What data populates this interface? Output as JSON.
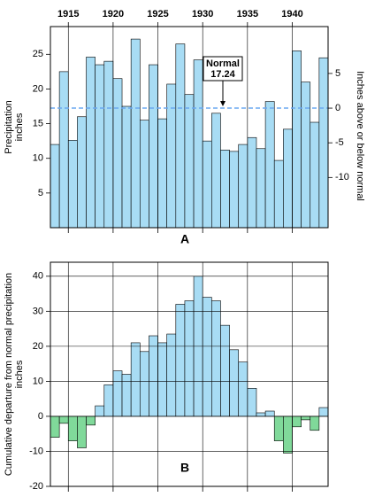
{
  "chart_data": [
    {
      "type": "bar",
      "label": "A",
      "x": [
        1913,
        1914,
        1915,
        1916,
        1917,
        1918,
        1919,
        1920,
        1921,
        1922,
        1923,
        1924,
        1925,
        1926,
        1927,
        1928,
        1929,
        1930,
        1931,
        1932,
        1933,
        1934,
        1935,
        1936,
        1937,
        1938,
        1939,
        1940,
        1941,
        1942,
        1943
      ],
      "values": [
        12,
        22.5,
        12.6,
        16,
        24.6,
        23.5,
        24,
        21.5,
        17.5,
        27.2,
        15.5,
        23.5,
        15.7,
        20.7,
        26.5,
        19.2,
        24.2,
        12.5,
        16.5,
        11.2,
        11,
        12,
        13,
        11.4,
        18.2,
        9.7,
        14.2,
        25.5,
        21,
        15.2,
        24.5
      ],
      "color": "#a8dcf4",
      "xlim": [
        1913,
        1944
      ],
      "xticks": [
        1915,
        1920,
        1925,
        1930,
        1935,
        1940
      ],
      "ylim": [
        0,
        29
      ],
      "yticks": [
        5,
        10,
        15,
        20,
        25
      ],
      "y2lim": [
        -17.24,
        11.76
      ],
      "y2ticks": [
        5,
        0,
        -5,
        -10
      ],
      "ylabel": [
        "Precipitation",
        "inches"
      ],
      "y2label": "Inches above or below normal",
      "normal": {
        "label": "Normal",
        "value": 17.24,
        "color": "#6aa8f0"
      },
      "grid": true
    },
    {
      "type": "bar",
      "label": "B",
      "x": [
        1913,
        1914,
        1915,
        1916,
        1917,
        1918,
        1919,
        1920,
        1921,
        1922,
        1923,
        1924,
        1925,
        1926,
        1927,
        1928,
        1929,
        1930,
        1931,
        1932,
        1933,
        1934,
        1935,
        1936,
        1937,
        1938,
        1939,
        1940,
        1941,
        1942,
        1943
      ],
      "values": [
        -6,
        -2,
        -7,
        -9,
        -2.5,
        3,
        9,
        13,
        12,
        21,
        18.5,
        23,
        21,
        23.5,
        32,
        33,
        40,
        34,
        33,
        26,
        19,
        15.5,
        8,
        1,
        1.5,
        -7,
        -10.5,
        -3,
        -1,
        -4,
        2.5
      ],
      "color": "#a8dcf4",
      "negative_color": "#80d99a",
      "xlim": [
        1913,
        1944
      ],
      "xticks": [
        1915,
        1920,
        1925,
        1930,
        1935,
        1940
      ],
      "ylim": [
        -20,
        44
      ],
      "yticks": [
        -20,
        -10,
        0,
        10,
        20,
        30,
        40
      ],
      "ylabel": [
        "Cumulative departure from normal precipitation",
        "inches"
      ],
      "grid": true
    }
  ]
}
